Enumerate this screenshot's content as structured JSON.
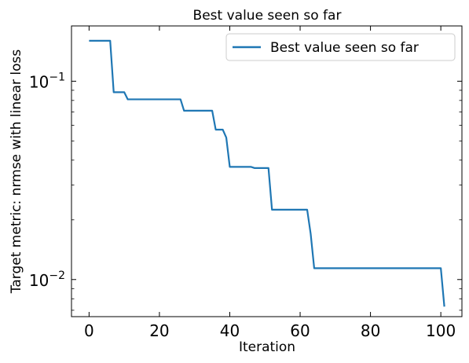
{
  "chart_data": {
    "type": "line",
    "title": "Best value seen so far",
    "xlabel": "Iteration",
    "ylabel": "Target metric: nrmse with linear loss",
    "xlim": [
      -5,
      106
    ],
    "ylim": [
      0.0065,
      0.19
    ],
    "yscale": "log",
    "x_ticks": [
      0,
      20,
      40,
      60,
      80,
      100
    ],
    "x_tick_labels": [
      "0",
      "20",
      "40",
      "60",
      "80",
      "100"
    ],
    "y_ticks": [
      0.01,
      0.1
    ],
    "y_tick_labels": [
      {
        "base": "10",
        "exp": "−2"
      },
      {
        "base": "10",
        "exp": "−1"
      }
    ],
    "legend": {
      "position": "top-right"
    },
    "grid": false,
    "series": [
      {
        "name": "Best value seen so far",
        "color": "#1f77b4",
        "x": [
          0,
          6,
          7,
          10,
          11,
          26,
          27,
          35,
          36,
          38,
          39,
          40,
          46,
          47,
          51,
          52,
          62,
          63,
          64,
          100,
          101
        ],
        "y": [
          0.16,
          0.16,
          0.088,
          0.088,
          0.081,
          0.081,
          0.071,
          0.071,
          0.057,
          0.057,
          0.052,
          0.037,
          0.037,
          0.0365,
          0.0365,
          0.0225,
          0.0225,
          0.017,
          0.0114,
          0.0114,
          0.0073
        ]
      }
    ]
  }
}
